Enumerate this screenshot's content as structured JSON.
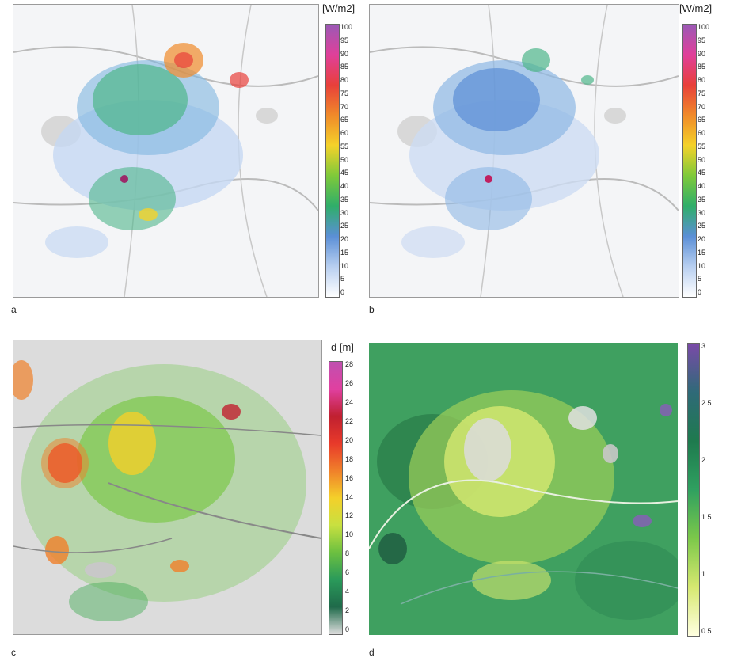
{
  "panels": {
    "a": {
      "label": "a",
      "unit": "[W/m2]",
      "ticks": [
        "100",
        "95",
        "90",
        "85",
        "80",
        "75",
        "70",
        "65",
        "60",
        "55",
        "50",
        "45",
        "40",
        "35",
        "30",
        "25",
        "20",
        "15",
        "10",
        "5",
        "0"
      ],
      "colorbar": [
        "#9b59b6",
        "#e0409a",
        "#e8403a",
        "#f08a2a",
        "#f4d22a",
        "#7ec93a",
        "#2fae6a",
        "#5b8fd6",
        "#b8cff0",
        "#ffffff"
      ]
    },
    "b": {
      "label": "b",
      "unit": "[W/m2]",
      "ticks": [
        "100",
        "95",
        "90",
        "85",
        "80",
        "75",
        "70",
        "65",
        "60",
        "55",
        "50",
        "45",
        "40",
        "35",
        "30",
        "25",
        "20",
        "15",
        "10",
        "5",
        "0"
      ],
      "colorbar": [
        "#9b59b6",
        "#e0409a",
        "#e8403a",
        "#f08a2a",
        "#f4d22a",
        "#7ec93a",
        "#2fae6a",
        "#5b8fd6",
        "#b8cff0",
        "#ffffff"
      ]
    },
    "c": {
      "label": "c",
      "unit": "d [m]",
      "ticks": [
        "28",
        "26",
        "24",
        "22",
        "20",
        "18",
        "16",
        "14",
        "12",
        "10",
        "8",
        "6",
        "4",
        "2",
        "0"
      ],
      "colorbar": [
        "#c050b0",
        "#e040a0",
        "#c02030",
        "#e83a2a",
        "#f0802a",
        "#f4d02a",
        "#c8e040",
        "#6cc040",
        "#2a9a5a",
        "#1f6a4a",
        "#dddddd"
      ]
    },
    "d": {
      "label": "d",
      "unit": "",
      "ticks": [
        "3",
        "2.5",
        "2",
        "1.5",
        "1",
        "0.5"
      ],
      "colorbar": [
        "#7a4aa8",
        "#2f6a78",
        "#1e7a4e",
        "#2fa060",
        "#7cc84a",
        "#d6e870",
        "#ffffe0"
      ]
    }
  }
}
